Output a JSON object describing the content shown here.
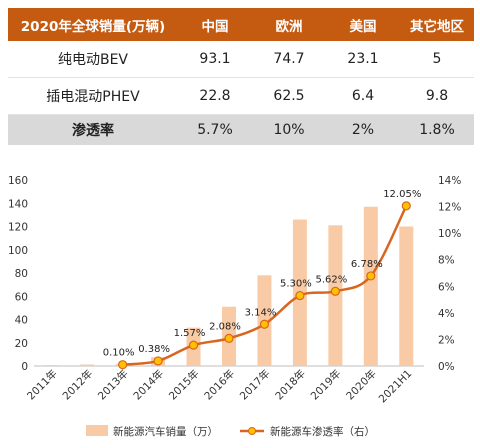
{
  "table": {
    "headers": [
      "2020年全球销量(万辆)",
      "中国",
      "欧洲",
      "美国",
      "其它地区"
    ],
    "rows": [
      {
        "label": "纯电动BEV",
        "values": [
          "93.1",
          "74.7",
          "23.1",
          "5"
        ]
      },
      {
        "label": "插电混动PHEV",
        "values": [
          "22.8",
          "62.5",
          "6.4",
          "9.8"
        ]
      },
      {
        "label": "渗透率",
        "values": [
          "5.7%",
          "10%",
          "2%",
          "1.8%"
        ]
      }
    ],
    "colors": {
      "header_bg": "#c55a11",
      "header_text": "#ffffff",
      "shade_bg": "#d9d9d9"
    }
  },
  "chart_data": {
    "type": "bar+line",
    "categories": [
      "2011年",
      "2012年",
      "2013年",
      "2014年",
      "2015年",
      "2016年",
      "2017年",
      "2018年",
      "2019年",
      "2020年",
      "2021H1"
    ],
    "series": [
      {
        "name": "新能源汽车销量（万）",
        "type": "bar",
        "axis": "left",
        "color": "#f8cba6",
        "values": [
          0.8,
          1.3,
          1.8,
          7.5,
          33,
          51,
          78,
          126,
          121,
          137,
          120
        ]
      },
      {
        "name": "新能源车渗透率（右）",
        "type": "line",
        "axis": "right",
        "color": "#d9661e",
        "marker_color": "#ffc000",
        "values": [
          null,
          null,
          0.1,
          0.38,
          1.57,
          2.08,
          3.14,
          5.3,
          5.62,
          6.78,
          12.05
        ],
        "labels": [
          "",
          "",
          "0.10%",
          "0.38%",
          "1.57%",
          "2.08%",
          "3.14%",
          "5.30%",
          "5.62%",
          "6.78%",
          "12.05%"
        ]
      }
    ],
    "y_left": {
      "min": 0,
      "max": 160,
      "ticks": [
        "0",
        "20",
        "40",
        "60",
        "80",
        "100",
        "120",
        "140",
        "160"
      ]
    },
    "y_right": {
      "min": 0,
      "max": 14,
      "ticks": [
        "0%",
        "2%",
        "4%",
        "6%",
        "8%",
        "10%",
        "12%",
        "14%"
      ]
    },
    "grid": false,
    "legend_position": "bottom"
  }
}
